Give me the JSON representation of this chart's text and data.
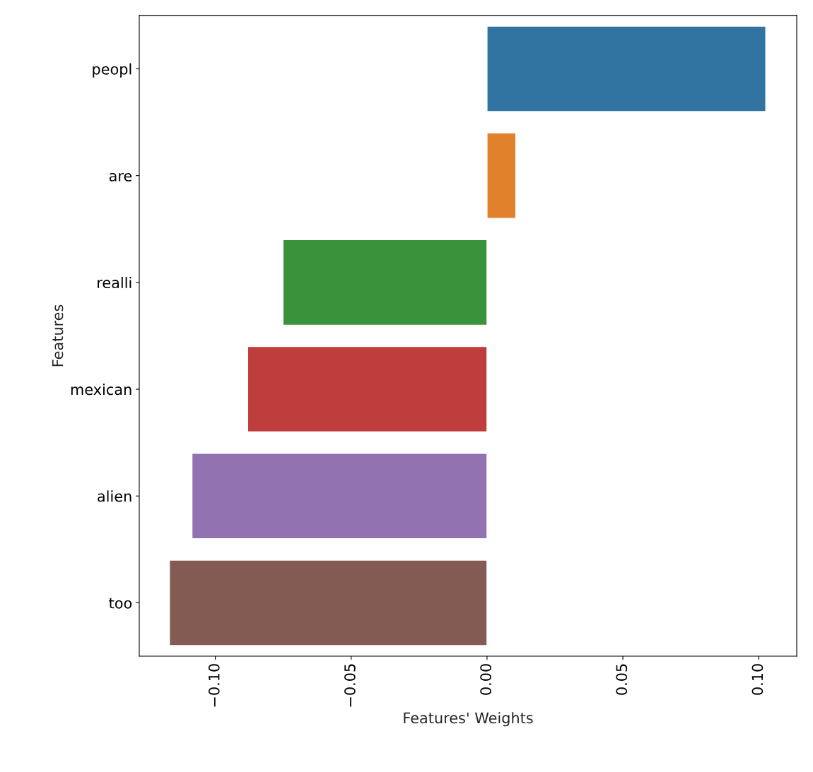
{
  "chart_data": {
    "type": "bar",
    "orientation": "horizontal",
    "xlabel": "Features' Weights",
    "ylabel": "Features",
    "categories": [
      "peopl",
      "are",
      "realli",
      "mexican",
      "alien",
      "too"
    ],
    "values": [
      0.1026,
      0.0106,
      -0.0751,
      -0.0881,
      -0.1086,
      -0.1169
    ],
    "colors": [
      "#3274a1",
      "#e1812c",
      "#3a923a",
      "#c03d3e",
      "#9372b2",
      "#845b53"
    ],
    "xlim": [
      -0.128,
      0.114
    ],
    "xticks": [
      {
        "value": -0.1,
        "label": "−0.10"
      },
      {
        "value": -0.05,
        "label": "−0.05"
      },
      {
        "value": 0,
        "label": "0.00"
      },
      {
        "value": 0.05,
        "label": "0.05"
      },
      {
        "value": 0.1,
        "label": "0.10"
      }
    ],
    "grid": false
  }
}
